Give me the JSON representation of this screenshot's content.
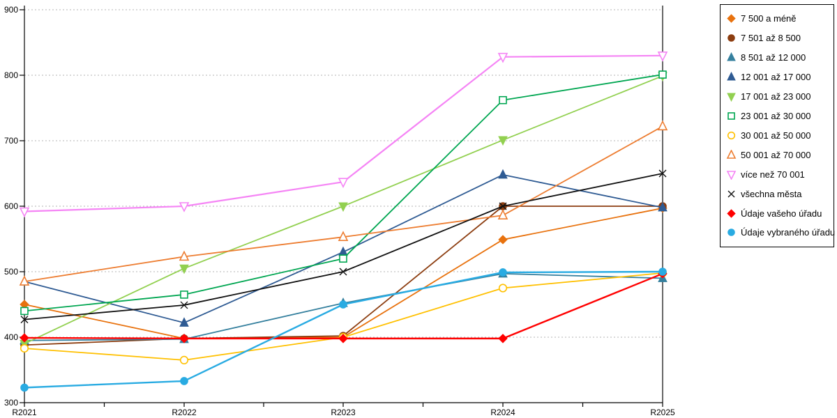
{
  "chart_data": {
    "type": "line",
    "title": "",
    "xlabel": "",
    "ylabel": "",
    "x": [
      "R2021",
      "R2022",
      "R2023",
      "R2024",
      "R2025"
    ],
    "ylim": [
      300,
      900
    ],
    "yticks": [
      300,
      400,
      500,
      600,
      700,
      800,
      900
    ],
    "grid": "horizontal dotted gridlines at each 100",
    "legend_position": "outside-right top, bordered box",
    "series": [
      {
        "name": "7 500 a méně",
        "color": "#e8720e",
        "marker": "diamond",
        "filled": true,
        "line_width": 1.8,
        "values": [
          450,
          398,
          400,
          549,
          597
        ]
      },
      {
        "name": "7 501 až 8 500",
        "color": "#8c3d10",
        "marker": "circle",
        "filled": true,
        "line_width": 1.8,
        "values": [
          388,
          398,
          402,
          600,
          600
        ]
      },
      {
        "name": "8 501 až 12 000",
        "color": "#35809e",
        "marker": "triangle-up",
        "filled": true,
        "line_width": 1.8,
        "values": [
          395,
          397,
          452,
          497,
          490
        ]
      },
      {
        "name": "12 001 až 17 000",
        "color": "#2f5b93",
        "marker": "triangle-up",
        "filled": true,
        "line_width": 1.8,
        "values": [
          485,
          422,
          530,
          648,
          598
        ]
      },
      {
        "name": "17 001 až 23 000",
        "color": "#92d050",
        "marker": "triangle-down",
        "filled": true,
        "line_width": 1.8,
        "values": [
          390,
          505,
          600,
          701,
          799
        ]
      },
      {
        "name": "23 001 až 30 000",
        "color": "#00a651",
        "marker": "square",
        "filled": false,
        "line_width": 1.8,
        "values": [
          440,
          465,
          520,
          762,
          801
        ]
      },
      {
        "name": "30 001 až 50 000",
        "color": "#ffc000",
        "marker": "circle",
        "filled": false,
        "line_width": 1.8,
        "values": [
          383,
          365,
          400,
          475,
          498
        ]
      },
      {
        "name": "50 001 až 70 000",
        "color": "#ed7d31",
        "marker": "triangle-up",
        "filled": false,
        "line_width": 1.8,
        "values": [
          485,
          523,
          553,
          586,
          722
        ]
      },
      {
        "name": "více než 70 001",
        "color": "#f584f5",
        "marker": "triangle-down",
        "filled": false,
        "line_width": 2.2,
        "values": [
          592,
          600,
          637,
          828,
          830
        ]
      },
      {
        "name": "všechna města",
        "color": "#111111",
        "marker": "x",
        "filled": true,
        "line_width": 1.8,
        "values": [
          427,
          449,
          500,
          600,
          650
        ]
      },
      {
        "name": "Údaje vašeho úřadu",
        "color": "#ff0000",
        "marker": "diamond",
        "filled": true,
        "line_width": 2.4,
        "values": [
          399,
          398,
          398,
          398,
          497
        ]
      },
      {
        "name": "Údaje vybraného úřadu",
        "color": "#29abe2",
        "marker": "circle",
        "filled": true,
        "line_width": 2.4,
        "values": [
          323,
          333,
          450,
          499,
          500
        ]
      }
    ]
  },
  "colors": {
    "axis": "#000000",
    "gridline": "#b3b3b3",
    "background": "#ffffff",
    "tick_label": "#000000"
  }
}
